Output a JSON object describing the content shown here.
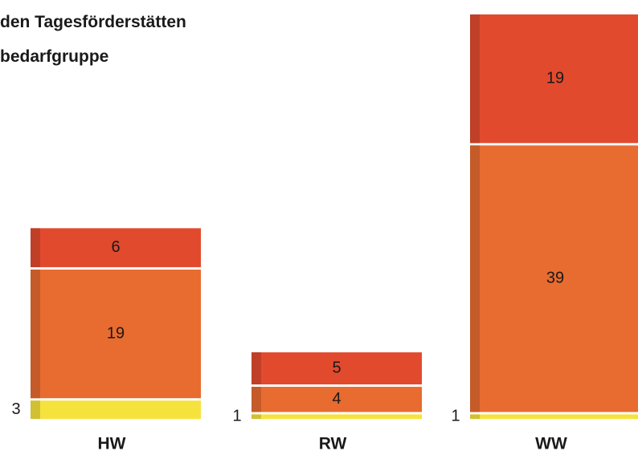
{
  "chart_data": {
    "type": "stacked_bar",
    "title": [
      "den Tagesförderstätten",
      "bedarfgruppe"
    ],
    "categories": [
      "HW",
      "RW",
      "WW"
    ],
    "series": [
      {
        "color": "#f6e23c",
        "values": [
          3,
          1,
          1
        ]
      },
      {
        "color": "#e86b30",
        "values": [
          19,
          4,
          39
        ]
      },
      {
        "color": "#e24a2e",
        "values": [
          6,
          5,
          19
        ]
      }
    ]
  }
}
